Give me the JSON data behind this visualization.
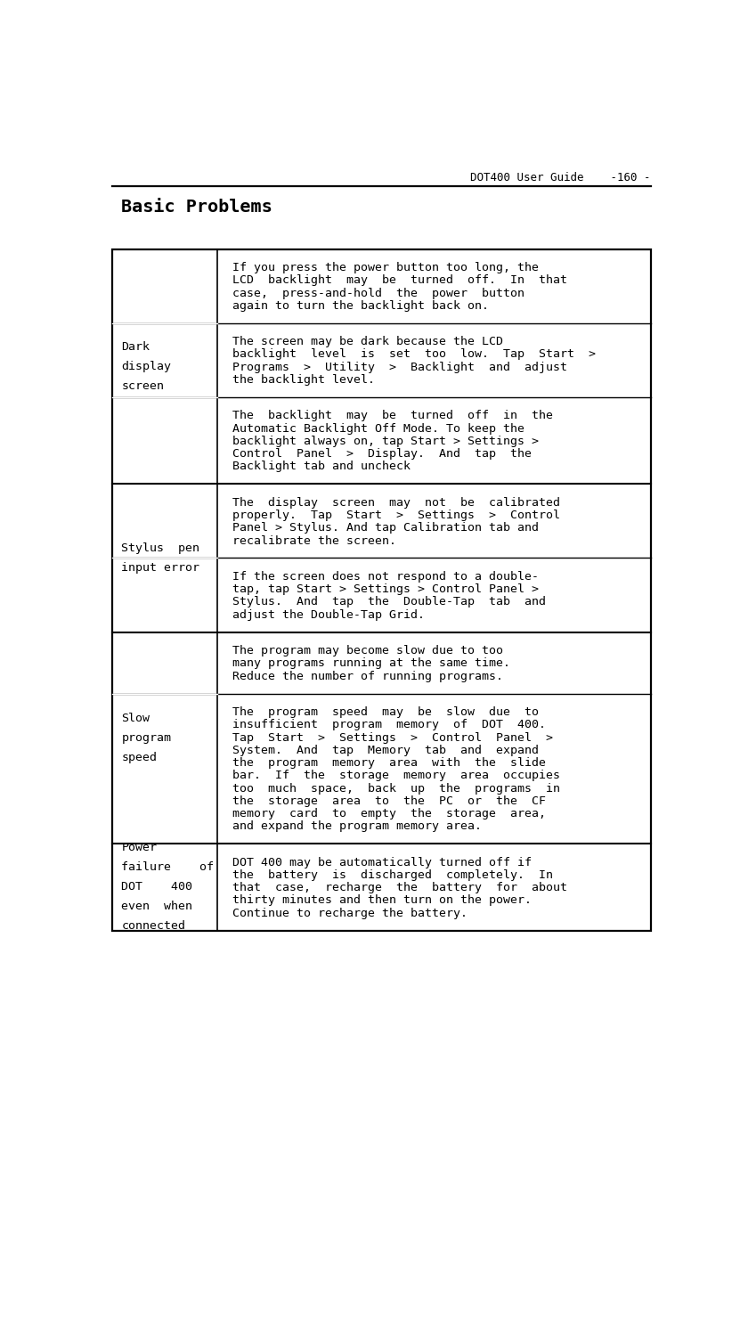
{
  "page_header": "DOT400 User Guide    -160 -",
  "section_title": "Basic Problems",
  "rows": [
    {
      "category": [
        "Dark",
        "display",
        "screen"
      ],
      "description": [
        "If you press the power button too long, the",
        "LCD  backlight  may  be  turned  off.  In  that",
        "case,  press-and-hold  the  power  button",
        "again to turn the backlight back on."
      ],
      "cat_group_start": true
    },
    {
      "category": [],
      "description": [
        "The screen may be dark because the LCD",
        "backlight  level  is  set  too  low.  Tap  Start  >",
        "Programs  >  Utility  >  Backlight  and  adjust",
        "the backlight level."
      ],
      "cat_group_start": false
    },
    {
      "category": [],
      "description": [
        "The  backlight  may  be  turned  off  in  the",
        "Automatic Backlight Off Mode. To keep the",
        "backlight always on, tap Start > Settings >",
        "Control  Panel  >  Display.  And  tap  the",
        "Backlight tab and uncheck"
      ],
      "cat_group_start": false
    },
    {
      "category": [
        "Stylus  pen",
        "input error"
      ],
      "description": [
        "The  display  screen  may  not  be  calibrated",
        "properly.  Tap  Start  >  Settings  >  Control",
        "Panel > Stylus. And tap Calibration tab and",
        "recalibrate the screen."
      ],
      "cat_group_start": true
    },
    {
      "category": [],
      "description": [
        "If the screen does not respond to a double-",
        "tap, tap Start > Settings > Control Panel >",
        "Stylus.  And  tap  the  Double-Tap  tab  and",
        "adjust the Double-Tap Grid."
      ],
      "cat_group_start": false
    },
    {
      "category": [
        "Slow",
        "program",
        "speed"
      ],
      "description": [
        "The program may become slow due to too",
        "many programs running at the same time.",
        "Reduce the number of running programs."
      ],
      "cat_group_start": true
    },
    {
      "category": [],
      "description": [
        "The  program  speed  may  be  slow  due  to",
        "insufficient  program  memory  of  DOT  400.",
        "Tap  Start  >  Settings  >  Control  Panel  >",
        "System.  And  tap  Memory  tab  and  expand",
        "the  program  memory  area  with  the  slide",
        "bar.  If  the  storage  memory  area  occupies",
        "too  much  space,  back  up  the  programs  in",
        "the  storage  area  to  the  PC  or  the  CF",
        "memory  card  to  empty  the  storage  area,",
        "and expand the program memory area."
      ],
      "cat_group_start": false
    },
    {
      "category": [
        "Power",
        "failure    of",
        "DOT    400",
        "even  when",
        "connected"
      ],
      "description": [
        "DOT 400 may be automatically turned off if",
        "the  battery  is  discharged  completely.  In",
        "that  case,  recharge  the  battery  for  about",
        "thirty minutes and then turn on the power.",
        "Continue to recharge the battery."
      ],
      "cat_group_start": true
    }
  ],
  "bg_color": "#ffffff",
  "text_color": "#000000",
  "border_color": "#000000",
  "header_font_size": 9.0,
  "title_font_size": 14.5,
  "cell_font_size": 9.5
}
